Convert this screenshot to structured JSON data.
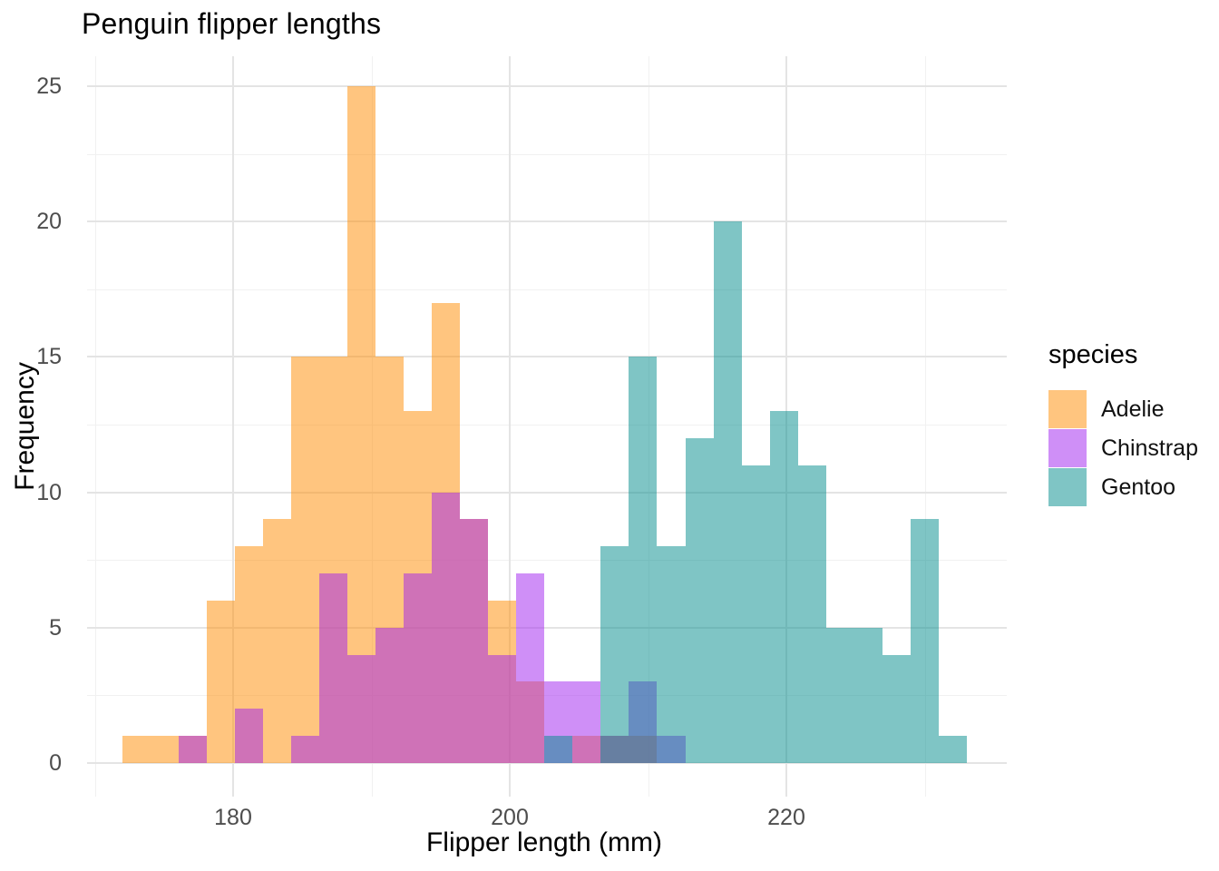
{
  "chart": {
    "title": "Penguin flipper lengths",
    "x_axis": {
      "label": "Flipper length (mm)",
      "major_ticks": [
        180,
        200,
        220
      ],
      "minor_gridlines": [
        170,
        190,
        210,
        230
      ]
    },
    "y_axis": {
      "label": "Frequency",
      "major_ticks": [
        0,
        5,
        10,
        15,
        20,
        25
      ],
      "minor_gridlines": [
        2.5,
        7.5,
        12.5,
        17.5,
        22.5
      ]
    },
    "legend": {
      "title": "species",
      "entries": [
        {
          "label": "Adelie",
          "color": "#FF8C00"
        },
        {
          "label": "Chinstrap",
          "color": "#A020F0"
        },
        {
          "label": "Gentoo",
          "color": "#008B8B"
        }
      ]
    }
  },
  "chart_data": {
    "type": "histogram",
    "title": "Penguin flipper lengths",
    "xlabel": "Flipper length (mm)",
    "ylabel": "Frequency",
    "bin_start": 172.0,
    "bin_width": 2.0345,
    "n_bins": 30,
    "alpha": 0.5,
    "xlim": [
      169,
      234
    ],
    "ylim": [
      0,
      26.25
    ],
    "grid": "on",
    "legend_position": "right",
    "series": [
      {
        "name": "Adelie",
        "fill": "#FF8C00",
        "counts": [
          1,
          1,
          1,
          6,
          8,
          9,
          15,
          15,
          25,
          15,
          13,
          17,
          9,
          6,
          3,
          0,
          1,
          1,
          1,
          0,
          0,
          0,
          0,
          0,
          0,
          0,
          0,
          0,
          0,
          0
        ]
      },
      {
        "name": "Chinstrap",
        "fill": "#A020F0",
        "counts": [
          0,
          0,
          1,
          0,
          2,
          0,
          1,
          7,
          4,
          5,
          7,
          10,
          9,
          4,
          7,
          3,
          3,
          1,
          3,
          1,
          0,
          0,
          0,
          0,
          0,
          0,
          0,
          0,
          0,
          0
        ]
      },
      {
        "name": "Gentoo",
        "fill": "#008B8B",
        "counts": [
          0,
          0,
          0,
          0,
          0,
          0,
          0,
          0,
          0,
          0,
          0,
          0,
          0,
          0,
          0,
          1,
          0,
          8,
          15,
          8,
          12,
          20,
          11,
          13,
          11,
          5,
          5,
          4,
          9,
          1
        ]
      }
    ]
  }
}
